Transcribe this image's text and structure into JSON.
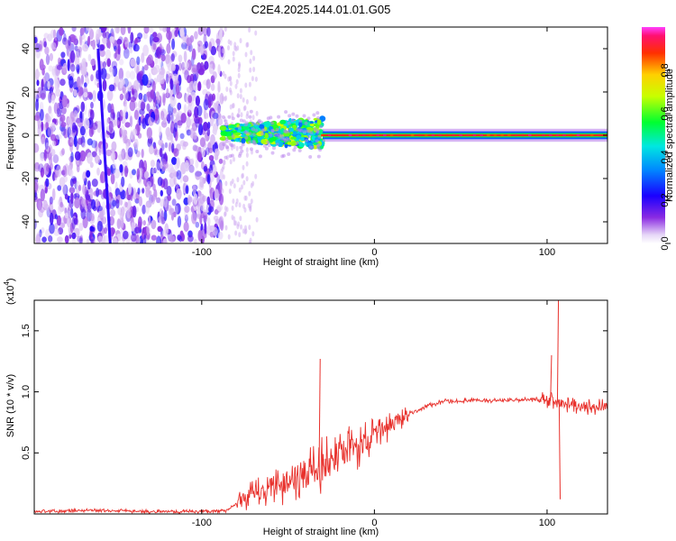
{
  "title": "C2E4.2025.144.01.01.G05",
  "chart_data": [
    {
      "type": "heatmap",
      "name": "spectrogram",
      "xlabel": "Height of straight line (km)",
      "ylabel": "Frequency (Hz)",
      "xlim": [
        -197,
        135
      ],
      "ylim": [
        -50,
        50
      ],
      "x_ticks": [
        -100,
        0,
        100
      ],
      "y_ticks": [
        -40,
        -20,
        0,
        20,
        40
      ],
      "colorbar": {
        "label": "Normalized spectral amplitude",
        "range": [
          0,
          1
        ],
        "ticks": [
          0.0,
          0.2,
          0.4,
          0.6,
          0.8
        ]
      },
      "regions": [
        {
          "x": [
            -197,
            -88
          ],
          "description_level": "noise",
          "amplitude": [
            0.0,
            0.25
          ],
          "freq_span": [
            -50,
            50
          ]
        },
        {
          "x": [
            -88,
            -30
          ],
          "amplitude": [
            0.3,
            0.7
          ],
          "freq_span": [
            -5,
            8
          ]
        },
        {
          "x": [
            -30,
            135
          ],
          "amplitude": [
            0.85,
            1.0
          ],
          "freq_span": [
            -1,
            1
          ]
        }
      ],
      "streak": {
        "x_start": -160,
        "y_start": 40,
        "x_end": -153,
        "y_end": -50
      }
    },
    {
      "type": "line",
      "name": "snr",
      "xlabel": "Height of straight line (km)",
      "ylabel": "SNR (10 * v/v)",
      "y_multiplier_label": "(x10",
      "y_multiplier_exp": "4",
      "xlim": [
        -197,
        135
      ],
      "ylim": [
        0,
        1.75
      ],
      "x_ticks": [
        -100,
        0,
        100
      ],
      "y_ticks": [
        0.5,
        1.0,
        1.5
      ],
      "color": "#e8312c",
      "points": [
        [
          -197,
          0.02
        ],
        [
          -160,
          0.03
        ],
        [
          -130,
          0.02
        ],
        [
          -100,
          0.02
        ],
        [
          -85,
          0.03
        ],
        [
          -78,
          0.1
        ],
        [
          -70,
          0.16
        ],
        [
          -60,
          0.22
        ],
        [
          -50,
          0.27
        ],
        [
          -40,
          0.33
        ],
        [
          -30,
          0.4
        ],
        [
          -20,
          0.48
        ],
        [
          -10,
          0.55
        ],
        [
          0,
          0.64
        ],
        [
          10,
          0.74
        ],
        [
          20,
          0.82
        ],
        [
          30,
          0.88
        ],
        [
          40,
          0.92
        ],
        [
          60,
          0.93
        ],
        [
          80,
          0.93
        ],
        [
          95,
          0.94
        ],
        [
          105,
          0.92
        ],
        [
          115,
          0.89
        ],
        [
          125,
          0.88
        ],
        [
          135,
          0.87
        ]
      ],
      "spikes": [
        [
          -32,
          1.27
        ],
        [
          -30,
          0.45
        ],
        [
          102,
          1.3
        ],
        [
          106,
          1.78
        ],
        [
          107,
          0.12
        ]
      ]
    }
  ]
}
